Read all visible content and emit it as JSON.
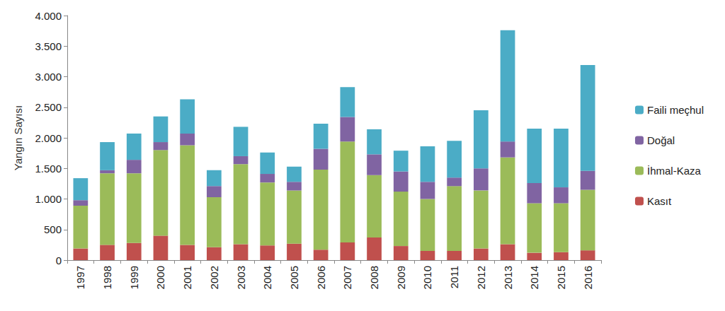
{
  "chart_data": {
    "type": "bar",
    "stacked": true,
    "y_label": "Yangın Sayısı",
    "categories": [
      "1997",
      "1998",
      "1999",
      "2000",
      "2001",
      "2002",
      "2003",
      "2004",
      "2005",
      "2006",
      "2007",
      "2008",
      "2009",
      "2010",
      "2011",
      "2012",
      "2013",
      "2014",
      "2015",
      "2016"
    ],
    "series": [
      {
        "name": "Kasıt",
        "color": "#c0504d",
        "values": [
          190,
          250,
          280,
          400,
          250,
          210,
          260,
          240,
          270,
          170,
          290,
          370,
          230,
          150,
          150,
          190,
          260,
          120,
          130,
          160
        ]
      },
      {
        "name": "İhmal-Kaza",
        "color": "#9bbb59",
        "values": [
          700,
          1170,
          1140,
          1400,
          1630,
          820,
          1310,
          1030,
          870,
          1310,
          1650,
          1020,
          890,
          850,
          1060,
          950,
          1420,
          810,
          800,
          990
        ]
      },
      {
        "name": "Doğal",
        "color": "#8064a2",
        "values": [
          90,
          50,
          220,
          130,
          190,
          180,
          130,
          140,
          140,
          340,
          400,
          340,
          330,
          280,
          140,
          360,
          260,
          330,
          260,
          310
        ]
      },
      {
        "name": "Faili meçhul",
        "color": "#4bacc6",
        "values": [
          360,
          460,
          430,
          420,
          560,
          260,
          480,
          350,
          250,
          410,
          490,
          410,
          340,
          580,
          600,
          950,
          1820,
          890,
          960,
          1730
        ]
      }
    ],
    "ylim": [
      0,
      4000
    ],
    "yticks": [
      0,
      500,
      {
        "value": 1000,
        "label": "1.000"
      },
      {
        "value": 1500,
        "label": "1.500"
      },
      {
        "value": 2000,
        "label": "2.000"
      },
      {
        "value": 2500,
        "label": "2.500"
      },
      {
        "value": 3000,
        "label": "3.000"
      },
      {
        "value": 3500,
        "label": "3.500"
      },
      {
        "value": 4000,
        "label": "4.000"
      }
    ],
    "grid": false,
    "legend": "right"
  }
}
